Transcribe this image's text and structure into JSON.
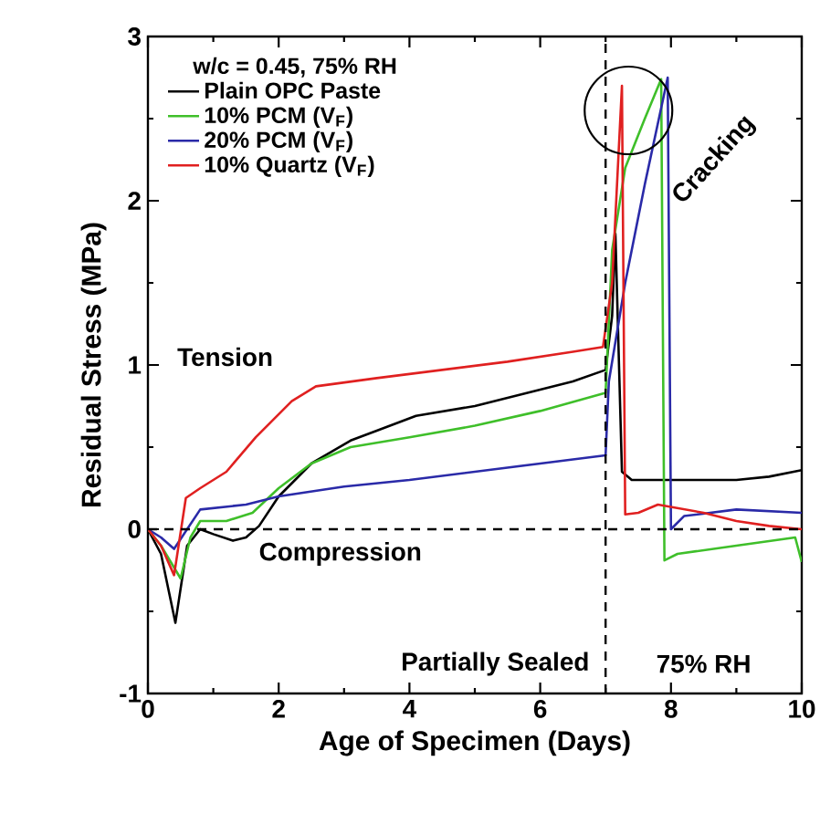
{
  "chart_data": {
    "type": "line",
    "xlabel": "Age of Specimen (Days)",
    "ylabel": "Residual Stress (MPa)",
    "legend_title": "w/c = 0.45, 75% RH",
    "xlim": [
      0,
      10
    ],
    "ylim": [
      -1,
      3
    ],
    "xticks": [
      0,
      2,
      4,
      6,
      8,
      10
    ],
    "yticks": [
      -1,
      0,
      1,
      2,
      3
    ],
    "legend": "top left",
    "grid": false,
    "marker": "none",
    "line_style": "solid",
    "series": [
      {
        "name": "Plain OPC Paste",
        "color": "#000000",
        "x": [
          0,
          0.2,
          0.42,
          0.6,
          0.8,
          1.0,
          1.3,
          1.5,
          1.7,
          2.0,
          2.5,
          3.1,
          3.5,
          4.1,
          5.0,
          6.0,
          6.5,
          7.0,
          7.1,
          7.15,
          7.25,
          7.4,
          8.0,
          9.0,
          9.5,
          10.0
        ],
        "values": [
          0,
          -0.15,
          -0.57,
          -0.1,
          0.0,
          -0.03,
          -0.07,
          -0.05,
          0.02,
          0.2,
          0.4,
          0.54,
          0.6,
          0.69,
          0.75,
          0.85,
          0.9,
          0.97,
          1.3,
          1.8,
          0.35,
          0.3,
          0.3,
          0.3,
          0.32,
          0.36
        ]
      },
      {
        "name": "10% PCM (V$_{F}$)",
        "color": "#3fbf2a",
        "x": [
          0,
          0.2,
          0.5,
          0.65,
          0.8,
          1.2,
          1.6,
          2.0,
          2.5,
          3.1,
          4.0,
          5.0,
          6.0,
          7.0,
          7.1,
          7.3,
          7.6,
          7.85,
          7.9,
          8.1,
          9.0,
          9.9,
          10.0
        ],
        "values": [
          0,
          -0.1,
          -0.3,
          -0.05,
          0.05,
          0.05,
          0.1,
          0.25,
          0.4,
          0.5,
          0.56,
          0.63,
          0.72,
          0.83,
          1.7,
          2.2,
          2.5,
          2.74,
          -0.19,
          -0.15,
          -0.1,
          -0.05,
          -0.2
        ]
      },
      {
        "name": "20% PCM (V$_{F}$)",
        "color": "#2a2aa8",
        "x": [
          0,
          0.2,
          0.4,
          0.6,
          0.8,
          1.5,
          2.0,
          3.0,
          4.0,
          5.0,
          6.0,
          7.0,
          7.05,
          7.3,
          7.6,
          7.95,
          8.0,
          8.2,
          9.0,
          10.0
        ],
        "values": [
          0,
          -0.05,
          -0.12,
          0.0,
          0.12,
          0.15,
          0.2,
          0.26,
          0.3,
          0.35,
          0.4,
          0.45,
          0.9,
          1.5,
          2.1,
          2.75,
          0.0,
          0.08,
          0.12,
          0.1
        ]
      },
      {
        "name": "10% Quartz (V$_{F}$)",
        "color": "#e02020",
        "x": [
          0,
          0.2,
          0.4,
          0.58,
          0.8,
          1.2,
          1.65,
          2.2,
          2.57,
          3.5,
          4.5,
          5.5,
          6.5,
          6.96,
          7.1,
          7.25,
          7.3,
          7.5,
          7.8,
          8.5,
          9.0,
          9.5,
          10.0
        ],
        "values": [
          0,
          -0.1,
          -0.28,
          0.19,
          0.25,
          0.35,
          0.56,
          0.78,
          0.87,
          0.92,
          0.97,
          1.02,
          1.08,
          1.11,
          1.5,
          2.7,
          0.09,
          0.1,
          0.15,
          0.1,
          0.05,
          0.02,
          0.0
        ]
      }
    ],
    "ref_lines": [
      {
        "axis": "y",
        "value": 0,
        "line_style": "dashed",
        "color": "#000000"
      },
      {
        "axis": "x",
        "value": 7,
        "line_style": "dashed",
        "color": "#000000"
      }
    ],
    "annotations": [
      "Tension",
      "Compression",
      "Partially Sealed",
      "75% RH",
      {
        "text": "Cracking",
        "x": 8.1,
        "y": 2.0
      }
    ]
  }
}
